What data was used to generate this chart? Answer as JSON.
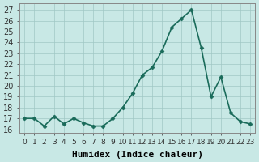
{
  "x": [
    0,
    1,
    2,
    3,
    4,
    5,
    6,
    7,
    8,
    9,
    10,
    11,
    12,
    13,
    14,
    15,
    16,
    17,
    18,
    19,
    20,
    21,
    22,
    23
  ],
  "y": [
    17.0,
    17.0,
    16.3,
    17.2,
    16.5,
    17.0,
    16.6,
    16.3,
    16.3,
    17.0,
    18.0,
    19.3,
    21.0,
    21.7,
    23.2,
    25.4,
    26.2,
    27.0,
    23.5,
    19.0,
    20.8,
    17.5,
    16.7,
    16.5
  ],
  "line_color": "#1a6b5a",
  "marker": "D",
  "background_color": "#c8e8e5",
  "grid_color": "#a0c8c4",
  "xlabel": "Humidex (Indice chaleur)",
  "ylabel_ticks": [
    16,
    17,
    18,
    19,
    20,
    21,
    22,
    23,
    24,
    25,
    26,
    27
  ],
  "ylim": [
    15.7,
    27.6
  ],
  "xlim": [
    -0.5,
    23.5
  ],
  "xlabel_fontsize": 8,
  "tick_fontsize": 7,
  "line_width": 1.2,
  "marker_size": 2.5
}
